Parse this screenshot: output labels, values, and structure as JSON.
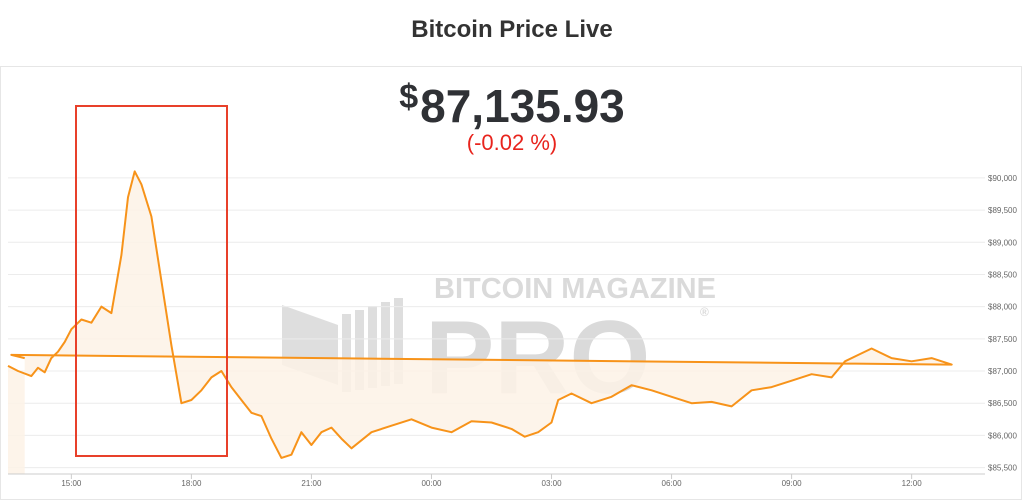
{
  "page": {
    "title": "Bitcoin Price Live"
  },
  "price": {
    "currency": "$",
    "value": "87,135.93",
    "change": "(-0.02 %)"
  },
  "watermark": {
    "line1": "BITCOIN MAGAZINE",
    "line2": "PRO",
    "mark": "®"
  },
  "colors": {
    "line": "#f7931a",
    "area": "#fdf2e6",
    "highlight": "#e8402a",
    "change": "#e8241d"
  },
  "chart_data": {
    "type": "area",
    "title": "Bitcoin Price Live",
    "xlabel": "",
    "ylabel": "",
    "ylim": [
      85400,
      90200
    ],
    "grid": true,
    "x_tick_labels": [
      "15:00",
      "18:00",
      "21:00",
      "00:00",
      "03:00",
      "06:00",
      "09:00",
      "12:00"
    ],
    "y_tick_labels": [
      "$85,500",
      "$86,000",
      "$86,500",
      "$87,000",
      "$87,500",
      "$88,000",
      "$88,500",
      "$89,000",
      "$89,500",
      "$90,000"
    ],
    "y_ticks": [
      85500,
      86000,
      86500,
      87000,
      87500,
      88000,
      88500,
      89000,
      89500,
      90000
    ],
    "x_range": [
      "13:25",
      "13:50"
    ],
    "series": [
      {
        "x": [
          "13:25",
          "13:40",
          "14:00",
          "14:10",
          "14:20",
          "14:30",
          "14:40",
          "14:50",
          "15:00",
          "15:15",
          "15:30",
          "15:45",
          "16:00",
          "16:15",
          "16:25",
          "16:35",
          "16:45",
          "17:00",
          "17:15",
          "17:30",
          "17:45",
          "18:00",
          "18:15",
          "18:30",
          "18:45",
          "19:00",
          "19:15",
          "19:30",
          "19:45",
          "20:00",
          "20:15",
          "20:30",
          "20:45",
          "21:00",
          "21:15",
          "21:30",
          "21:45",
          "22:00",
          "22:30",
          "23:00",
          "23:30",
          "00:00",
          "00:30",
          "01:00",
          "01:30",
          "02:00",
          "02:20",
          "02:40",
          "03:00",
          "03:10",
          "03:30",
          "04:00",
          "04:30",
          "05:00",
          "05:30",
          "06:00",
          "06:30",
          "07:00",
          "07:30",
          "08:00",
          "08:30",
          "09:00",
          "09:30",
          "10:00",
          "10:20",
          "10:40",
          "11:00",
          "11:30",
          "12:00",
          "12:30",
          "13:00",
          "13:30",
          "13:50"
        ],
        "y": [
          87080,
          87000,
          86920,
          87050,
          86980,
          87200,
          87300,
          87450,
          87650,
          87800,
          87750,
          88000,
          87900,
          88800,
          89700,
          90100,
          89900,
          89400,
          88400,
          87400,
          86500,
          86550,
          86700,
          86900,
          87000,
          86750,
          86550,
          86350,
          86300,
          85950,
          85650,
          85700,
          86050,
          85850,
          86050,
          86120,
          85950,
          85800,
          86050,
          86150,
          86250,
          86120,
          86050,
          86220,
          86200,
          86100,
          85980,
          86050,
          86200,
          86550,
          86650,
          86500,
          86600,
          86780,
          86700,
          86600,
          86500,
          86520,
          86450,
          86700,
          86750,
          86850,
          86950,
          86900,
          87150,
          87250,
          87350,
          87200,
          87150,
          87200,
          87100,
          87250,
          87200
        ]
      }
    ]
  }
}
